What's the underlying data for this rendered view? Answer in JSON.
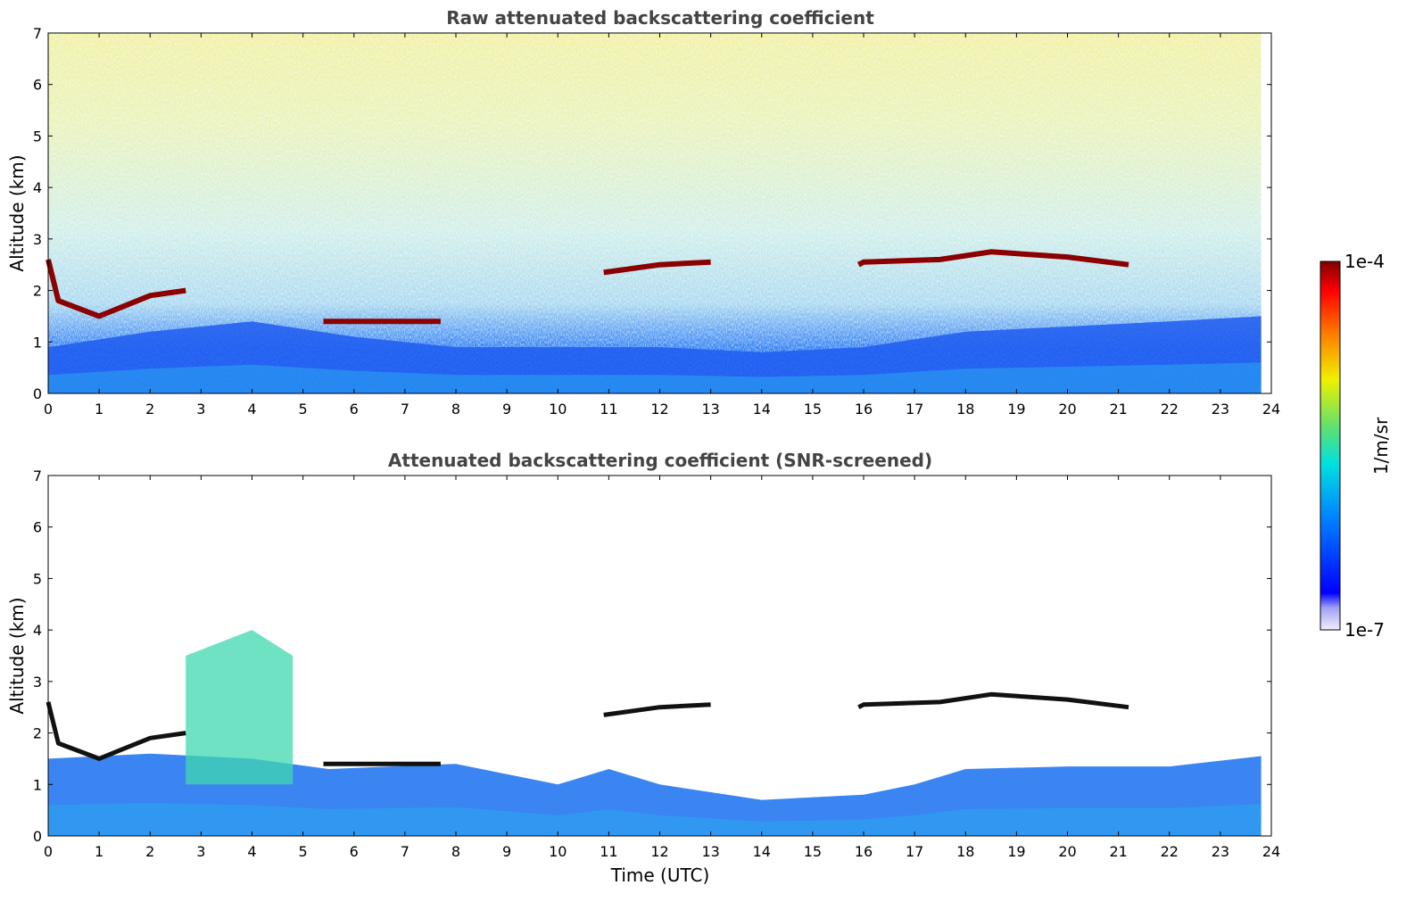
{
  "chart_data": [
    {
      "type": "heatmap",
      "title": "Raw attenuated backscattering coefficient",
      "xlabel": "",
      "ylabel": "Altitude (km)",
      "xlim": [
        0,
        24
      ],
      "ylim": [
        0,
        7
      ],
      "xticks": [
        "0",
        "1",
        "2",
        "3",
        "4",
        "5",
        "6",
        "7",
        "8",
        "9",
        "10",
        "11",
        "12",
        "13",
        "14",
        "15",
        "16",
        "17",
        "18",
        "19",
        "20",
        "21",
        "22",
        "23",
        "24"
      ],
      "yticks": [
        "0",
        "1",
        "2",
        "3",
        "4",
        "5",
        "6",
        "7"
      ],
      "grid": false,
      "data_end_hour": 23.8,
      "features": {
        "cloud_layer_km": [
          [
            0.0,
            2.6
          ],
          [
            0.2,
            1.8
          ],
          [
            1.0,
            1.5
          ],
          [
            2.0,
            1.9
          ],
          [
            2.7,
            2.0
          ],
          [
            5.4,
            1.4
          ],
          [
            7.7,
            1.4
          ],
          [
            10.9,
            2.35
          ],
          [
            12.0,
            2.5
          ],
          [
            13.0,
            2.55
          ],
          [
            15.9,
            2.5
          ],
          [
            16.0,
            2.55
          ],
          [
            17.5,
            2.6
          ],
          [
            18.5,
            2.75
          ],
          [
            20.0,
            2.65
          ],
          [
            21.2,
            2.5
          ]
        ],
        "boundary_layer_top_km": [
          [
            0,
            0.9
          ],
          [
            2,
            1.2
          ],
          [
            4,
            1.4
          ],
          [
            6,
            1.1
          ],
          [
            8,
            0.9
          ],
          [
            10,
            0.9
          ],
          [
            12,
            0.9
          ],
          [
            14,
            0.8
          ],
          [
            16,
            0.9
          ],
          [
            18,
            1.2
          ],
          [
            20,
            1.3
          ],
          [
            22,
            1.4
          ],
          [
            23.8,
            1.5
          ]
        ]
      }
    },
    {
      "type": "heatmap",
      "title": "Attenuated backscattering coefficient (SNR-screened)",
      "xlabel": "Time (UTC)",
      "ylabel": "Altitude (km)",
      "xlim": [
        0,
        24
      ],
      "ylim": [
        0,
        7
      ],
      "xticks": [
        "0",
        "1",
        "2",
        "3",
        "4",
        "5",
        "6",
        "7",
        "8",
        "9",
        "10",
        "11",
        "12",
        "13",
        "14",
        "15",
        "16",
        "17",
        "18",
        "19",
        "20",
        "21",
        "22",
        "23",
        "24"
      ],
      "yticks": [
        "0",
        "1",
        "2",
        "3",
        "4",
        "5",
        "6",
        "7"
      ],
      "grid": false,
      "data_end_hour": 23.8,
      "features": {
        "aerosol_plume_km": [
          [
            2.7,
            3.5
          ],
          [
            4.0,
            4.0
          ],
          [
            4.8,
            3.5
          ]
        ],
        "boundary_layer_top_km": [
          [
            0,
            1.5
          ],
          [
            2,
            1.6
          ],
          [
            4,
            1.5
          ],
          [
            5.5,
            1.3
          ],
          [
            8,
            1.4
          ],
          [
            10,
            1.0
          ],
          [
            11,
            1.3
          ],
          [
            12,
            1.0
          ],
          [
            14,
            0.7
          ],
          [
            16,
            0.8
          ],
          [
            17,
            1.0
          ],
          [
            18,
            1.3
          ],
          [
            20,
            1.35
          ],
          [
            22,
            1.35
          ],
          [
            23.8,
            1.55
          ]
        ]
      }
    }
  ],
  "colorbar": {
    "label": "1/m/sr",
    "max_label": "1e-4",
    "min_label": "1e-7",
    "scale": "log",
    "range": [
      1e-07,
      0.0001
    ],
    "colormap": "jet"
  }
}
